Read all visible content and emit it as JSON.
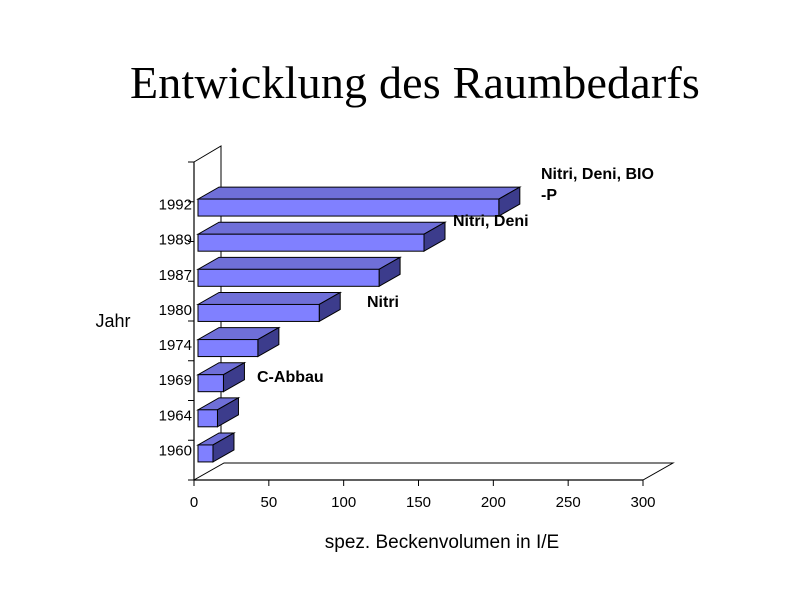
{
  "chart_data": {
    "type": "bar",
    "orientation": "horizontal",
    "style": "3d",
    "title": "Entwicklung des Raumbedarfs",
    "xlabel": "spez. Beckenvolumen in I/E",
    "ylabel": "Jahr",
    "xlim": [
      0,
      300
    ],
    "x_ticks": [
      "0",
      "50",
      "100",
      "150",
      "200",
      "250",
      "300"
    ],
    "categories": [
      "1960",
      "1964",
      "1969",
      "1974",
      "1980",
      "1987",
      "1989",
      "1992"
    ],
    "values": [
      10,
      13,
      17,
      40,
      81,
      121,
      151,
      201
    ],
    "bar_color": "#8080ff",
    "annotations": [
      {
        "category": "1992",
        "text_lines": [
          "Nitri, Deni, BIO",
          "-P"
        ]
      },
      {
        "category": "1989",
        "text_lines": [
          "Nitri, Deni"
        ]
      },
      {
        "category": "1980",
        "text_lines": [
          "Nitri"
        ]
      },
      {
        "category": "1969",
        "text_lines": [
          "C-Abbau"
        ]
      }
    ]
  }
}
